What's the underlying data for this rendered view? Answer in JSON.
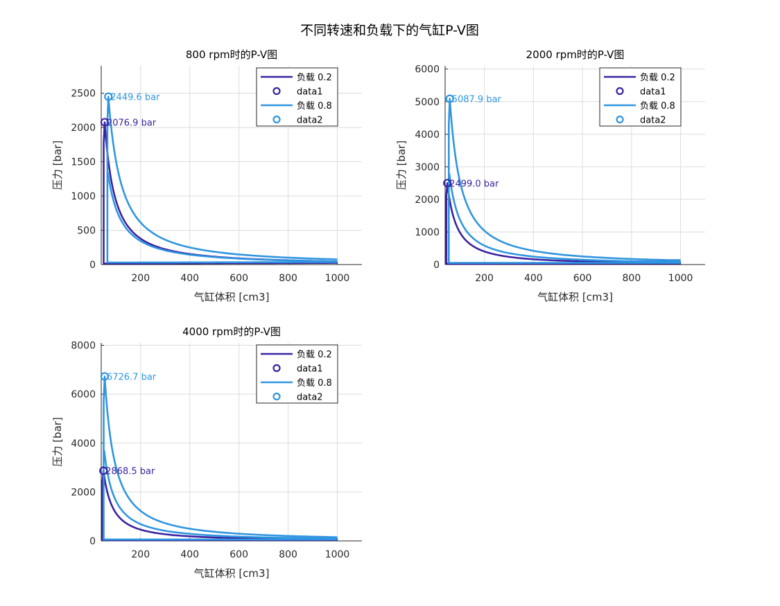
{
  "figure_title": "不同转速和负载下的气缸P-V图",
  "colors": {
    "load_low": "#3a22a0",
    "load_high": "#2f95e0"
  },
  "chart_data": [
    {
      "type": "line",
      "title": "800 rpm时的P-V图",
      "xlabel": "气缸体积 [cm3]",
      "ylabel": "压力 [bar]",
      "xlim": [
        40,
        1100
      ],
      "ylim": [
        0,
        2900
      ],
      "xticks": [
        200,
        400,
        600,
        800,
        1000
      ],
      "yticks": [
        0,
        500,
        1000,
        1500,
        2000,
        2500
      ],
      "grid": true,
      "legend_position": "top-right",
      "legend": [
        "负载 0.2",
        "data1",
        "负载 0.8",
        "data2"
      ],
      "series": [
        {
          "name": "负载 0.2",
          "load": 0.2,
          "peak_pressure": 2076.9,
          "peak_volume": 50,
          "end_pressure": 60,
          "high_v_pressure": 50,
          "low_pressure": 15
        },
        {
          "name": "负载 0.8",
          "load": 0.8,
          "peak_pressure": 2449.6,
          "peak_volume": 65,
          "end_pressure": 60,
          "high_v_pressure": 68,
          "low_pressure": 30
        }
      ],
      "annotations": [
        {
          "text": "2076.9 bar",
          "series": 0
        },
        {
          "text": "2449.6 bar",
          "series": 1
        }
      ]
    },
    {
      "type": "line",
      "title": "2000 rpm时的P-V图",
      "xlabel": "气缸体积 [cm3]",
      "ylabel": "压力 [bar]",
      "xlim": [
        40,
        1100
      ],
      "ylim": [
        0,
        6100
      ],
      "xticks": [
        200,
        400,
        600,
        800,
        1000
      ],
      "yticks": [
        0,
        1000,
        2000,
        3000,
        4000,
        5000,
        6000
      ],
      "grid": true,
      "legend_position": "top-right",
      "legend": [
        "负载 0.2",
        "data1",
        "负载 0.8",
        "data2"
      ],
      "series": [
        {
          "name": "负载 0.2",
          "load": 0.2,
          "peak_pressure": 2499.0,
          "peak_volume": 45,
          "end_pressure": 60,
          "high_v_pressure": 100,
          "low_pressure": 25
        },
        {
          "name": "负载 0.8",
          "load": 0.8,
          "peak_pressure": 5087.9,
          "peak_volume": 55,
          "end_pressure": 60,
          "high_v_pressure": 140,
          "low_pressure": 50
        }
      ],
      "annotations": [
        {
          "text": "2499.0 bar",
          "series": 0
        },
        {
          "text": "5087.9 bar",
          "series": 1
        }
      ]
    },
    {
      "type": "line",
      "title": "4000 rpm时的P-V图",
      "xlabel": "气缸体积 [cm3]",
      "ylabel": "压力 [bar]",
      "xlim": [
        40,
        1100
      ],
      "ylim": [
        0,
        8100
      ],
      "xticks": [
        200,
        400,
        600,
        800,
        1000
      ],
      "yticks": [
        0,
        2000,
        4000,
        6000,
        8000
      ],
      "grid": true,
      "legend_position": "top-right",
      "legend": [
        "负载 0.2",
        "data1",
        "负载 0.8",
        "data2"
      ],
      "series": [
        {
          "name": "负载 0.2",
          "load": 0.2,
          "peak_pressure": 2868.5,
          "peak_volume": 45,
          "end_pressure": 60,
          "high_v_pressure": 100,
          "low_pressure": 30
        },
        {
          "name": "负载 0.8",
          "load": 0.8,
          "peak_pressure": 6726.7,
          "peak_volume": 50,
          "end_pressure": 60,
          "high_v_pressure": 130,
          "low_pressure": 60
        }
      ],
      "annotations": [
        {
          "text": "2868.5 bar",
          "series": 0
        },
        {
          "text": "6726.7 bar",
          "series": 1
        }
      ]
    }
  ]
}
